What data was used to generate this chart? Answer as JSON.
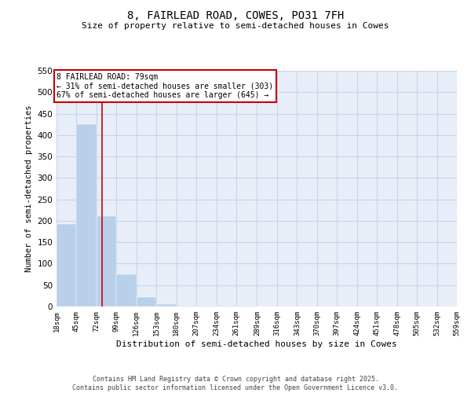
{
  "title1": "8, FAIRLEAD ROAD, COWES, PO31 7FH",
  "title2": "Size of property relative to semi-detached houses in Cowes",
  "xlabel": "Distribution of semi-detached houses by size in Cowes",
  "ylabel": "Number of semi-detached properties",
  "bar_color": "#b8d0ea",
  "grid_color": "#c8d4e8",
  "background_color": "#e8eef8",
  "annotation_box_color": "#cc0000",
  "property_line_color": "#cc0000",
  "bin_edges": [
    18,
    45,
    72,
    99,
    126,
    153,
    180,
    207,
    234,
    261,
    289,
    316,
    343,
    370,
    397,
    424,
    451,
    478,
    505,
    532,
    559
  ],
  "bar_heights": [
    193,
    425,
    210,
    75,
    22,
    5,
    2,
    1,
    1,
    1,
    0,
    0,
    0,
    0,
    0,
    0,
    0,
    0,
    0,
    0
  ],
  "ylim": [
    0,
    550
  ],
  "property_size": 79,
  "annotation_text": "8 FAIRLEAD ROAD: 79sqm\n← 31% of semi-detached houses are smaller (303)\n67% of semi-detached houses are larger (645) →",
  "footer_text": "Contains HM Land Registry data © Crown copyright and database right 2025.\nContains public sector information licensed under the Open Government Licence v3.0.",
  "yticks": [
    0,
    50,
    100,
    150,
    200,
    250,
    300,
    350,
    400,
    450,
    500,
    550
  ]
}
